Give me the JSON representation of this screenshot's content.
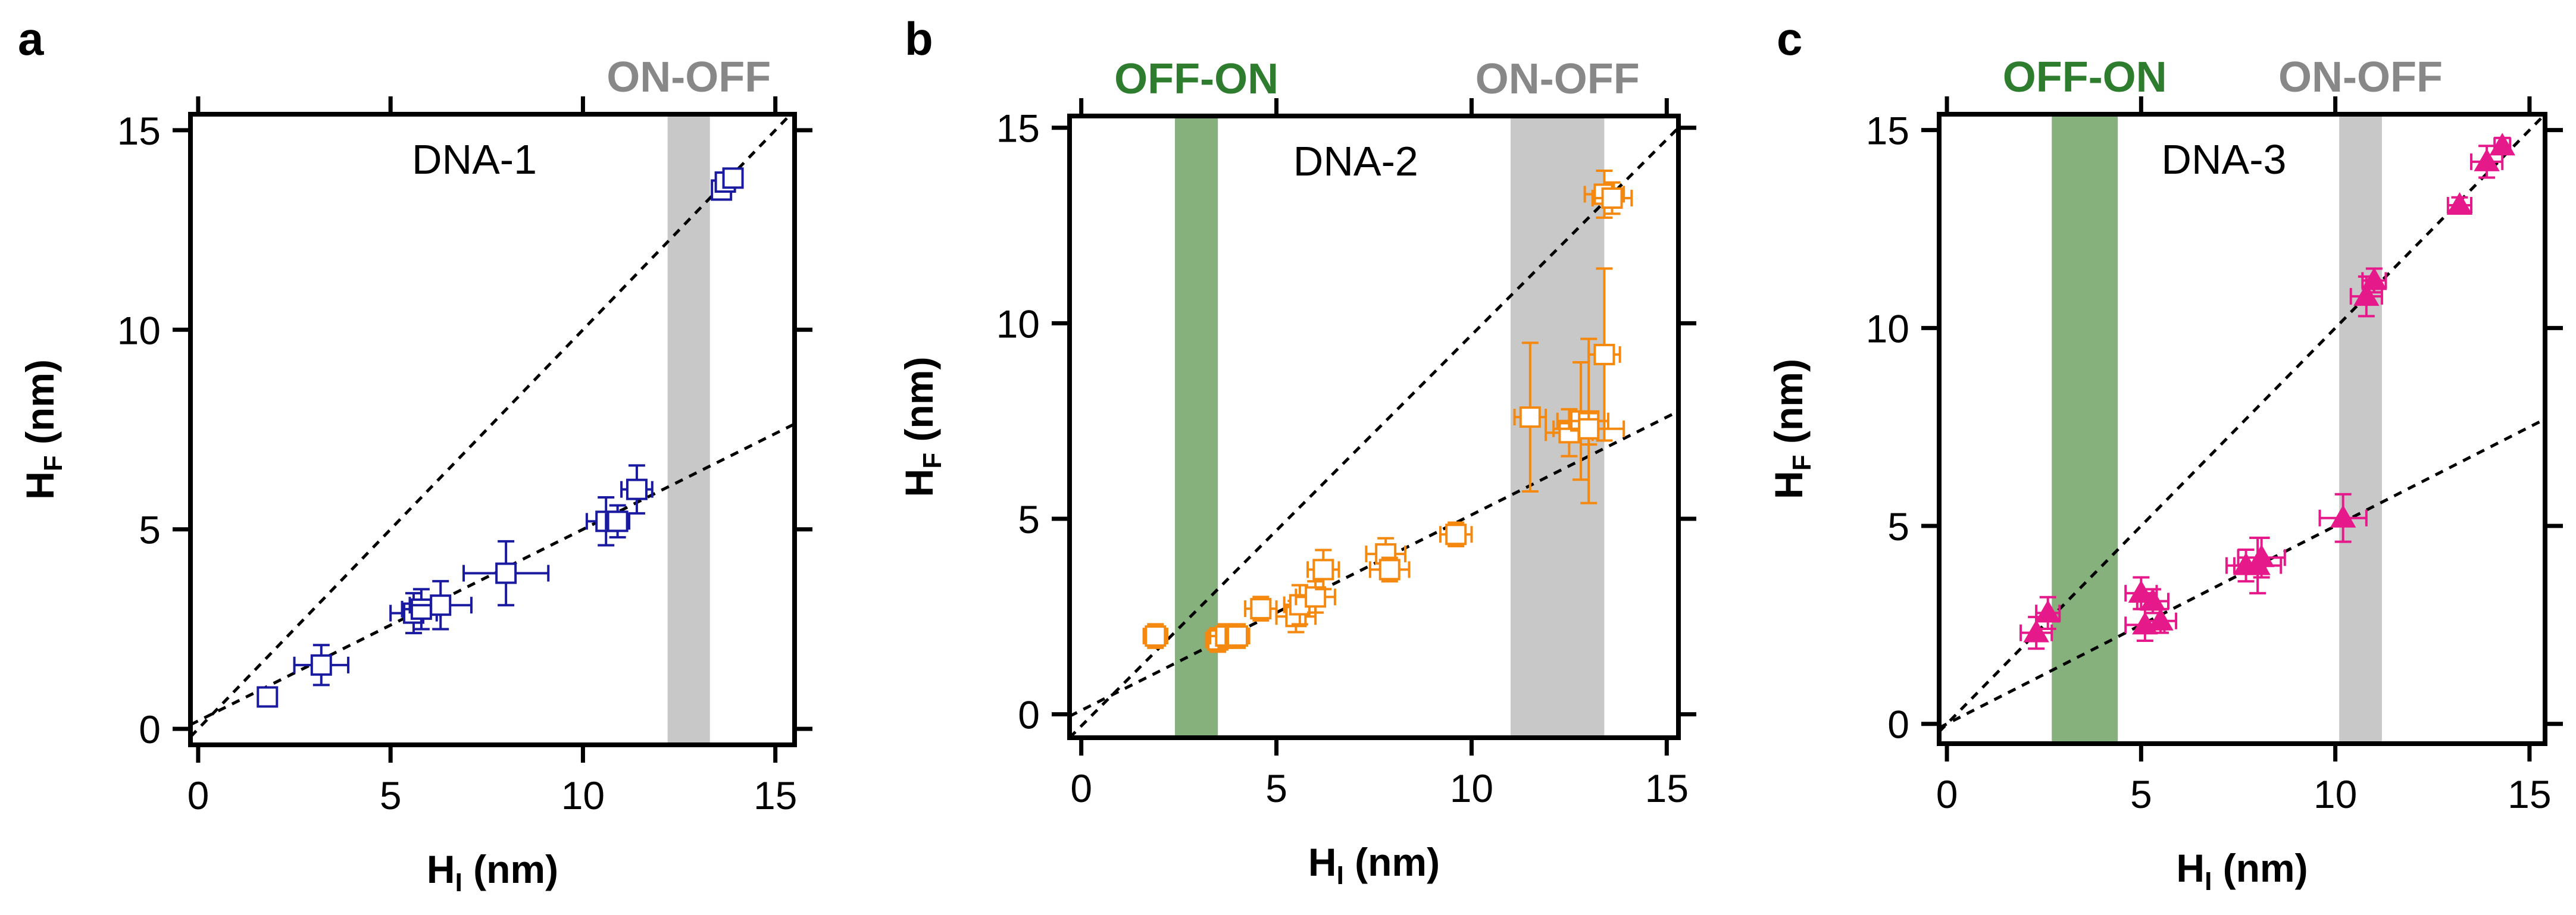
{
  "chart_data": [
    {
      "type": "scatter",
      "panel_label": "a",
      "inset_label": "DNA-1",
      "xlabel": {
        "main": "H",
        "sub": "I",
        "unit": " (nm)"
      },
      "ylabel": {
        "main": "H",
        "sub": "F",
        "unit": " (nm)"
      },
      "xlim": [
        -0.2,
        15.5
      ],
      "ylim": [
        -0.4,
        15.4
      ],
      "xticks": [
        0,
        5,
        10,
        15
      ],
      "yticks": [
        0,
        5,
        10,
        15
      ],
      "xtick_labels": [
        "0",
        "5",
        "10",
        "15"
      ],
      "ytick_labels": [
        "0",
        "5",
        "10",
        "15"
      ],
      "color": "#1a1aa0",
      "marker": "square-open",
      "bands": [
        {
          "label": "ON-OFF",
          "x0": 12.2,
          "x1": 13.3,
          "color": "#c8c8c8",
          "label_color": "#888888"
        }
      ],
      "lines": [
        {
          "name": "",
          "slope": 1.0,
          "intercept": 0.0
        },
        {
          "name": "",
          "slope": 0.48,
          "intercept": 0.2
        }
      ],
      "points": [
        {
          "x": 1.8,
          "y": 0.8,
          "xerr": 0.2,
          "yerr": 0.15
        },
        {
          "x": 3.2,
          "y": 1.6,
          "xerr": 0.7,
          "yerr": 0.5
        },
        {
          "x": 5.6,
          "y": 2.9,
          "xerr": 0.6,
          "yerr": 0.5
        },
        {
          "x": 5.8,
          "y": 3.0,
          "xerr": 0.5,
          "yerr": 0.5
        },
        {
          "x": 6.3,
          "y": 3.1,
          "xerr": 0.8,
          "yerr": 0.6
        },
        {
          "x": 8.0,
          "y": 3.9,
          "xerr": 1.1,
          "yerr": 0.8
        },
        {
          "x": 10.6,
          "y": 5.2,
          "xerr": 0.5,
          "yerr": 0.6
        },
        {
          "x": 10.9,
          "y": 5.2,
          "xerr": 0.3,
          "yerr": 0.4
        },
        {
          "x": 11.4,
          "y": 6.0,
          "xerr": 0.4,
          "yerr": 0.6
        },
        {
          "x": 13.6,
          "y": 13.5,
          "xerr": 0.2,
          "yerr": 0.2
        },
        {
          "x": 13.7,
          "y": 13.7,
          "xerr": 0.2,
          "yerr": 0.2
        },
        {
          "x": 13.9,
          "y": 13.8,
          "xerr": 0.2,
          "yerr": 0.2
        }
      ]
    },
    {
      "type": "scatter",
      "panel_label": "b",
      "inset_label": "DNA-2",
      "xlabel": {
        "main": "H",
        "sub": "I",
        "unit": " (nm)"
      },
      "ylabel": {
        "main": "H",
        "sub": "F",
        "unit": " (nm)"
      },
      "xlim": [
        -0.3,
        15.3
      ],
      "ylim": [
        -0.6,
        15.3
      ],
      "xticks": [
        0,
        5,
        10,
        15
      ],
      "yticks": [
        0,
        5,
        10,
        15
      ],
      "xtick_labels": [
        "0",
        "5",
        "10",
        "15"
      ],
      "ytick_labels": [
        "0",
        "5",
        "10",
        "15"
      ],
      "color": "#f5880f",
      "marker": "square-open",
      "bands": [
        {
          "label": "OFF-ON",
          "x0": 2.4,
          "x1": 3.5,
          "color": "#86b07c",
          "label_color": "#2e7d2e"
        },
        {
          "label": "ON-OFF",
          "x0": 11.0,
          "x1": 13.4,
          "color": "#c8c8c8",
          "label_color": "#888888"
        }
      ],
      "lines": [
        {
          "name": "",
          "slope": 1.0,
          "intercept": -0.3
        },
        {
          "name": "",
          "slope": 0.5,
          "intercept": 0.1
        }
      ],
      "points": [
        {
          "x": 1.9,
          "y": 2.0,
          "xerr": 0.3,
          "yerr": 0.3
        },
        {
          "x": 3.5,
          "y": 1.9,
          "xerr": 0.3,
          "yerr": 0.3
        },
        {
          "x": 3.7,
          "y": 2.0,
          "xerr": 0.4,
          "yerr": 0.3
        },
        {
          "x": 4.0,
          "y": 2.0,
          "xerr": 0.3,
          "yerr": 0.3
        },
        {
          "x": 4.6,
          "y": 2.7,
          "xerr": 0.4,
          "yerr": 0.3
        },
        {
          "x": 5.5,
          "y": 2.5,
          "xerr": 0.5,
          "yerr": 0.4
        },
        {
          "x": 5.6,
          "y": 2.8,
          "xerr": 0.4,
          "yerr": 0.5
        },
        {
          "x": 6.0,
          "y": 3.0,
          "xerr": 0.5,
          "yerr": 0.4
        },
        {
          "x": 6.2,
          "y": 3.7,
          "xerr": 0.4,
          "yerr": 0.5
        },
        {
          "x": 7.8,
          "y": 4.1,
          "xerr": 0.5,
          "yerr": 0.4
        },
        {
          "x": 7.9,
          "y": 3.7,
          "xerr": 0.5,
          "yerr": 0.3
        },
        {
          "x": 9.6,
          "y": 4.6,
          "xerr": 0.4,
          "yerr": 0.3
        },
        {
          "x": 11.5,
          "y": 7.6,
          "xerr": 0.4,
          "yerr": 1.9
        },
        {
          "x": 12.5,
          "y": 7.2,
          "xerr": 0.6,
          "yerr": 0.6
        },
        {
          "x": 12.8,
          "y": 7.5,
          "xerr": 0.6,
          "yerr": 1.5
        },
        {
          "x": 13.0,
          "y": 7.5,
          "xerr": 0.5,
          "yerr": 2.1
        },
        {
          "x": 13.0,
          "y": 7.3,
          "xerr": 0.9,
          "yerr": 0.4
        },
        {
          "x": 13.4,
          "y": 9.2,
          "xerr": 0.4,
          "yerr": 2.2
        },
        {
          "x": 13.4,
          "y": 13.3,
          "xerr": 0.5,
          "yerr": 0.6
        },
        {
          "x": 13.6,
          "y": 13.2,
          "xerr": 0.5,
          "yerr": 0.4
        }
      ]
    },
    {
      "type": "scatter",
      "panel_label": "c",
      "inset_label": "DNA-3",
      "xlabel": {
        "main": "H",
        "sub": "I",
        "unit": " (nm)"
      },
      "ylabel": {
        "main": "H",
        "sub": "F",
        "unit": " (nm)"
      },
      "xlim": [
        -0.2,
        15.4
      ],
      "ylim": [
        -0.5,
        15.4
      ],
      "xticks": [
        0,
        5,
        10,
        15
      ],
      "yticks": [
        0,
        5,
        10,
        15
      ],
      "xtick_labels": [
        "0",
        "5",
        "10",
        "15"
      ],
      "ytick_labels": [
        "0",
        "5",
        "10",
        "15"
      ],
      "color": "#e6198a",
      "marker": "triangle-filled",
      "bands": [
        {
          "label": "OFF-ON",
          "x0": 2.7,
          "x1": 4.4,
          "color": "#86b07c",
          "label_color": "#2e7d2e"
        },
        {
          "label": "ON-OFF",
          "x0": 10.1,
          "x1": 11.2,
          "color": "#c8c8c8",
          "label_color": "#888888"
        }
      ],
      "lines": [
        {
          "name": "",
          "slope": 1.0,
          "intercept": 0.0
        },
        {
          "name": "",
          "slope": 0.5,
          "intercept": 0.0
        }
      ],
      "points": [
        {
          "x": 2.3,
          "y": 2.3,
          "xerr": 0.4,
          "yerr": 0.4
        },
        {
          "x": 2.6,
          "y": 2.8,
          "xerr": 0.3,
          "yerr": 0.4
        },
        {
          "x": 5.0,
          "y": 3.3,
          "xerr": 0.4,
          "yerr": 0.4
        },
        {
          "x": 5.1,
          "y": 2.5,
          "xerr": 0.5,
          "yerr": 0.4
        },
        {
          "x": 5.3,
          "y": 3.1,
          "xerr": 0.4,
          "yerr": 0.3
        },
        {
          "x": 5.5,
          "y": 2.6,
          "xerr": 0.4,
          "yerr": 0.3
        },
        {
          "x": 7.7,
          "y": 4.0,
          "xerr": 0.5,
          "yerr": 0.4
        },
        {
          "x": 8.0,
          "y": 4.0,
          "xerr": 0.6,
          "yerr": 0.7
        },
        {
          "x": 8.1,
          "y": 4.2,
          "xerr": 0.6,
          "yerr": 0.5
        },
        {
          "x": 10.2,
          "y": 5.2,
          "xerr": 0.6,
          "yerr": 0.6
        },
        {
          "x": 10.8,
          "y": 10.8,
          "xerr": 0.4,
          "yerr": 0.5
        },
        {
          "x": 11.0,
          "y": 11.2,
          "xerr": 0.3,
          "yerr": 0.3
        },
        {
          "x": 13.2,
          "y": 13.1,
          "xerr": 0.3,
          "yerr": 0.2
        },
        {
          "x": 13.9,
          "y": 14.2,
          "xerr": 0.4,
          "yerr": 0.4
        },
        {
          "x": 14.3,
          "y": 14.6,
          "xerr": 0.2,
          "yerr": 0.2
        }
      ]
    }
  ]
}
